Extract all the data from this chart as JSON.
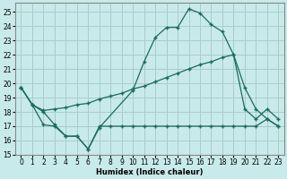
{
  "xlabel": "Humidex (Indice chaleur)",
  "background_color": "#c8eaea",
  "grid_color": "#aacccc",
  "line_color": "#1a6a60",
  "xlim": [
    -0.5,
    23.5
  ],
  "ylim": [
    15,
    25.6
  ],
  "yticks": [
    15,
    16,
    17,
    18,
    19,
    20,
    21,
    22,
    23,
    24,
    25
  ],
  "xticks": [
    0,
    1,
    2,
    3,
    4,
    5,
    6,
    7,
    8,
    9,
    10,
    11,
    12,
    13,
    14,
    15,
    16,
    17,
    18,
    19,
    20,
    21,
    22,
    23
  ],
  "series": [
    {
      "x": [
        0,
        1,
        2,
        3,
        4,
        5,
        6,
        7,
        10,
        11,
        12,
        13,
        14,
        15,
        16,
        17,
        18,
        19,
        20,
        21,
        22,
        23
      ],
      "y": [
        19.7,
        18.5,
        18.0,
        17.1,
        16.3,
        16.3,
        15.4,
        16.9,
        19.5,
        21.5,
        23.2,
        23.9,
        23.9,
        25.2,
        24.9,
        24.1,
        23.6,
        22.0,
        19.7,
        18.2,
        17.5,
        17.0
      ]
    },
    {
      "x": [
        0,
        1,
        2,
        3,
        4,
        5,
        6,
        7,
        8,
        9,
        10,
        11,
        12,
        13,
        14,
        15,
        16,
        17,
        18,
        19,
        20,
        21,
        22,
        23
      ],
      "y": [
        19.7,
        18.5,
        18.1,
        18.2,
        18.3,
        18.5,
        18.6,
        18.9,
        19.1,
        19.3,
        19.6,
        19.8,
        20.1,
        20.4,
        20.7,
        21.0,
        21.3,
        21.5,
        21.8,
        22.0,
        18.2,
        17.5,
        18.2,
        17.5
      ]
    },
    {
      "x": [
        0,
        1,
        2,
        3,
        4,
        5,
        6,
        7,
        8,
        9,
        10,
        11,
        12,
        13,
        14,
        15,
        16,
        17,
        18,
        19,
        20,
        21,
        22,
        23
      ],
      "y": [
        19.7,
        18.5,
        17.1,
        17.0,
        16.3,
        16.3,
        15.4,
        17.0,
        17.0,
        17.0,
        17.0,
        17.0,
        17.0,
        17.0,
        17.0,
        17.0,
        17.0,
        17.0,
        17.0,
        17.0,
        17.0,
        17.0,
        17.5,
        17.0
      ]
    }
  ]
}
